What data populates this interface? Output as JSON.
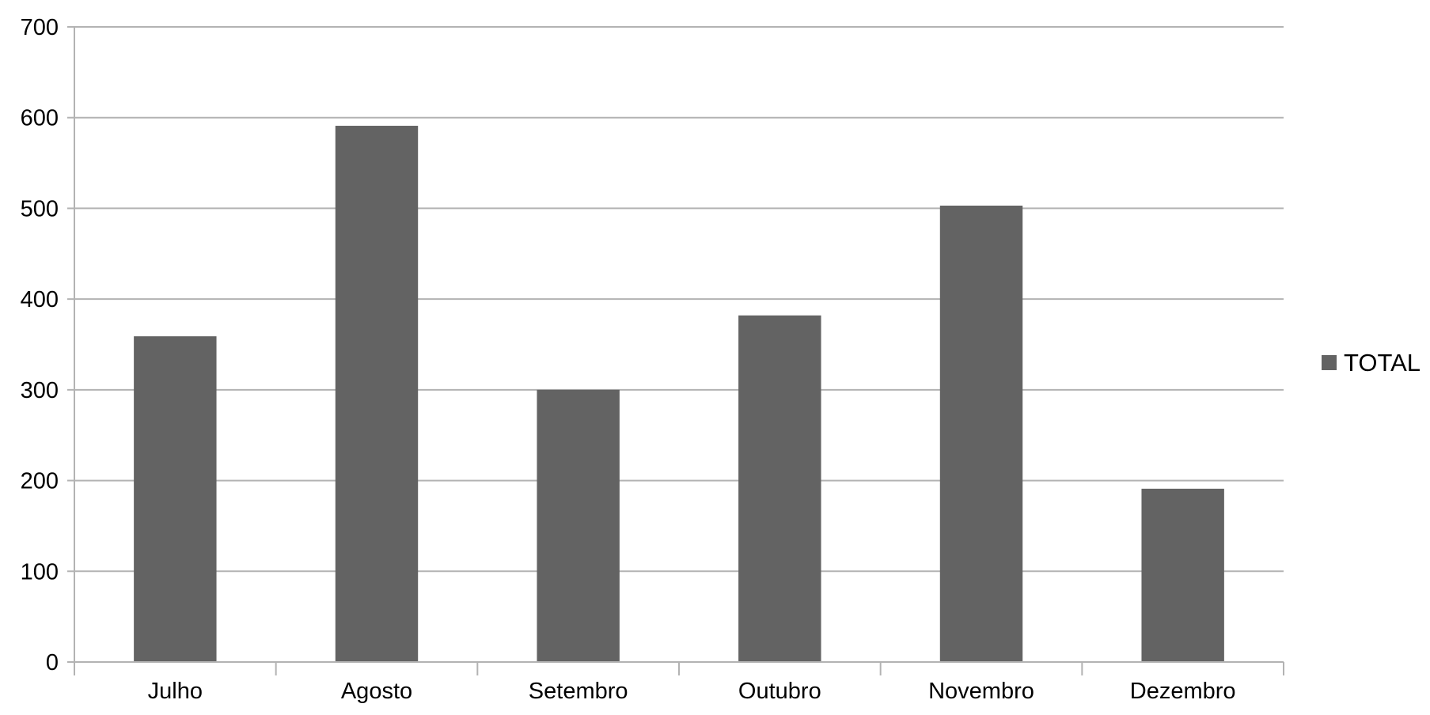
{
  "chart_data": {
    "type": "bar",
    "categories": [
      "Julho",
      "Agosto",
      "Setembro",
      "Outubro",
      "Novembro",
      "Dezembro"
    ],
    "series": [
      {
        "name": "TOTAL",
        "values": [
          359,
          591,
          300,
          382,
          503,
          191
        ],
        "color": "#636363"
      }
    ],
    "ylim": [
      0,
      700
    ],
    "yticks": [
      0,
      100,
      200,
      300,
      400,
      500,
      600,
      700
    ],
    "grid": true,
    "legend_position": "right"
  },
  "colors": {
    "bar": "#636363",
    "grid": "#b3b3b3",
    "axis": "#b3b3b3",
    "text": "#000000"
  }
}
